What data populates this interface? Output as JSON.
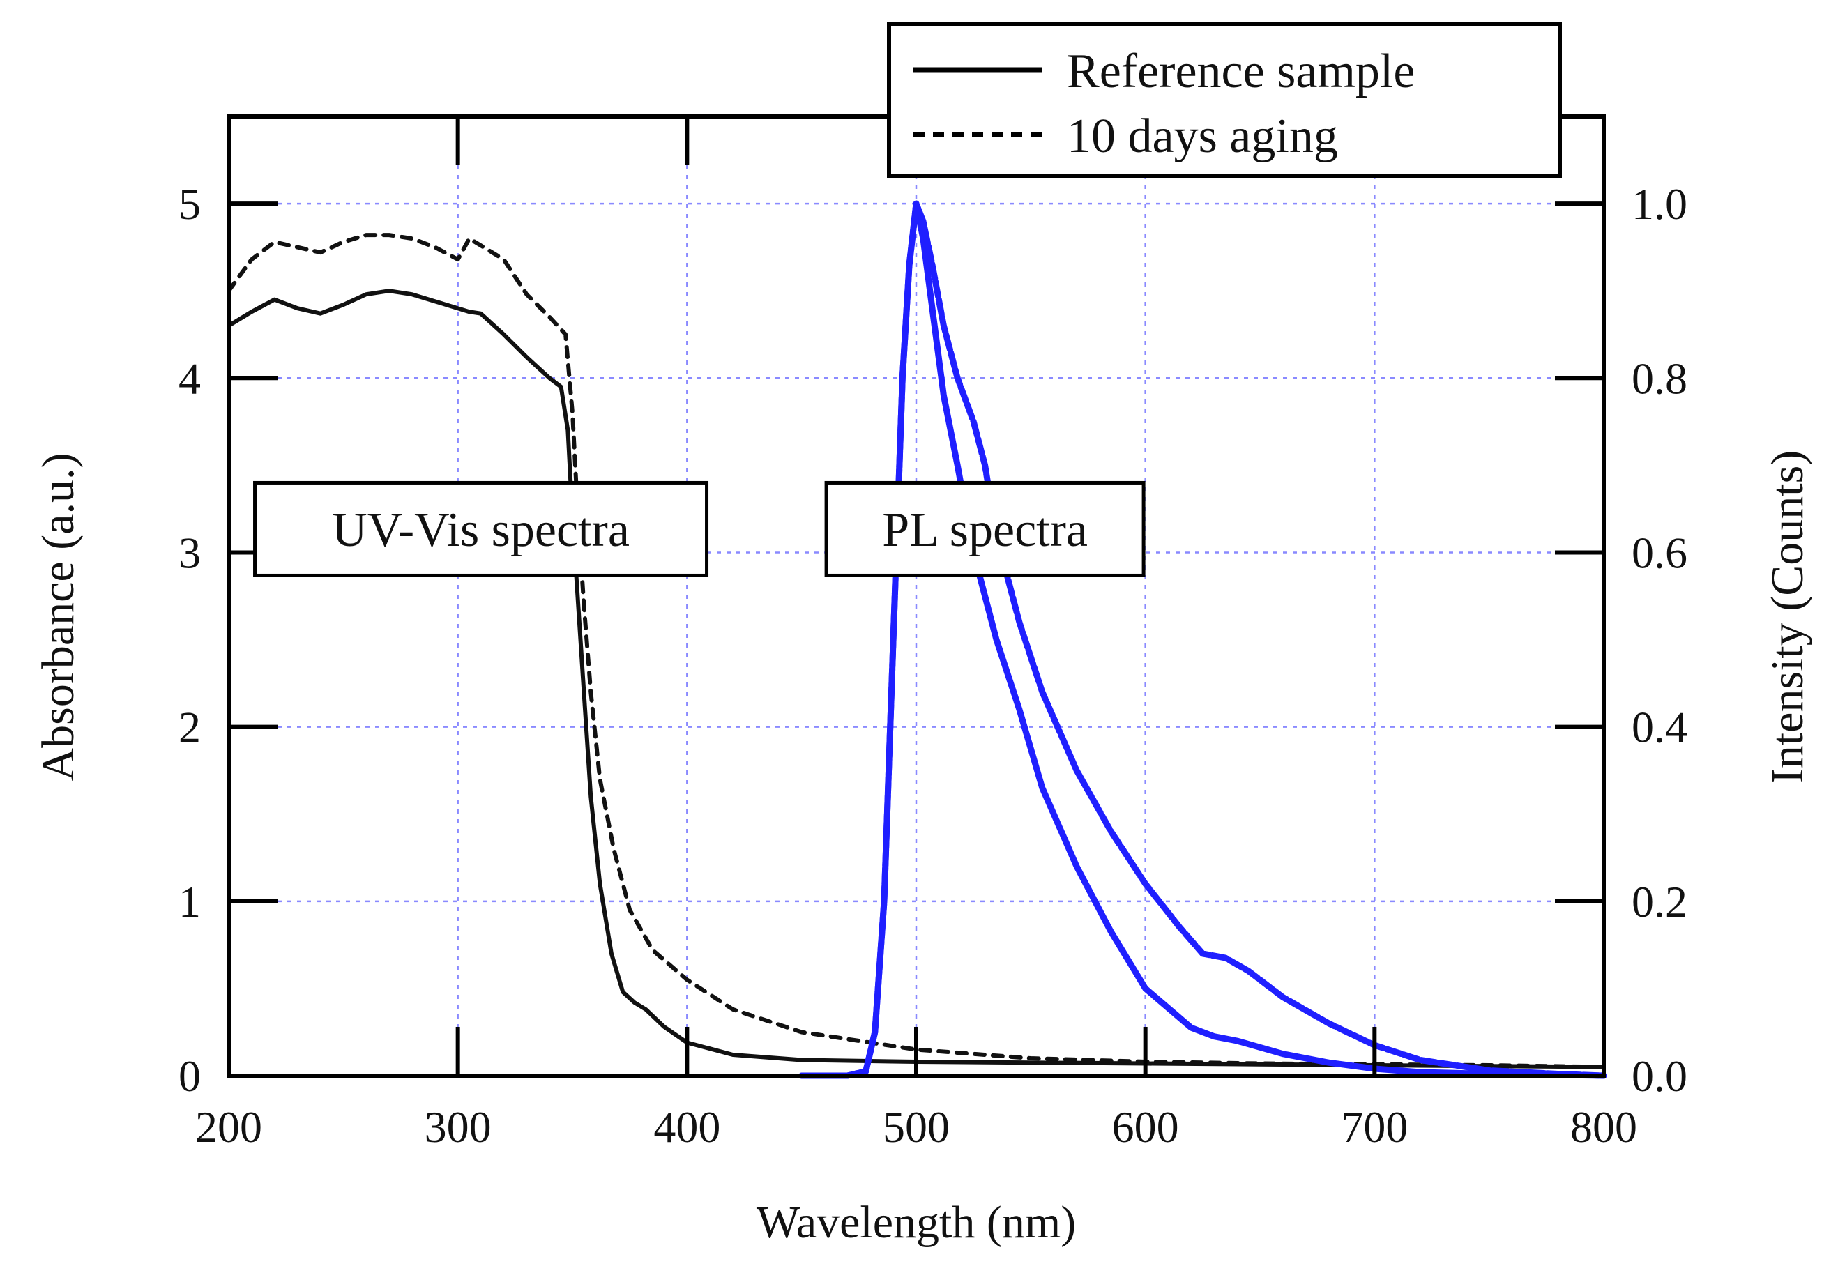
{
  "chart_data": {
    "type": "line",
    "title": "",
    "xlabel": "Wavelength (nm)",
    "ylabel_left": "Absorbance (a.u.)",
    "ylabel_right": "Intensity (Counts)",
    "xlim": [
      200,
      800
    ],
    "ylim_left": [
      0,
      5.5
    ],
    "ylim_right": [
      0,
      1.1
    ],
    "x_ticks": [
      "200",
      "300",
      "400",
      "500",
      "600",
      "700",
      "800"
    ],
    "y_left_ticks": [
      "0",
      "1",
      "2",
      "3",
      "4",
      "5"
    ],
    "y_right_ticks": [
      "0.0",
      "0.2",
      "0.4",
      "0.6",
      "0.8",
      "1.0"
    ],
    "grid": true,
    "legend_position": "top-right",
    "legend": [
      {
        "label": "Reference sample",
        "style": "solid"
      },
      {
        "label": "10 days aging",
        "style": "dashed"
      }
    ],
    "annotations": [
      {
        "text": "UV-Vis spectra",
        "x": 310,
        "y": 3.0
      },
      {
        "text": "PL spectra",
        "x": 530,
        "y": 3.0
      }
    ],
    "colors": {
      "uvvis": "#111111",
      "pl": "#1f1fff",
      "grid": "#8a8aff"
    },
    "series": [
      {
        "group": "UV-Vis spectra",
        "axis": "left",
        "style": "solid",
        "points": [
          [
            200,
            4.3
          ],
          [
            210,
            4.38
          ],
          [
            220,
            4.45
          ],
          [
            230,
            4.4
          ],
          [
            240,
            4.37
          ],
          [
            250,
            4.42
          ],
          [
            260,
            4.48
          ],
          [
            270,
            4.5
          ],
          [
            280,
            4.48
          ],
          [
            290,
            4.44
          ],
          [
            300,
            4.4
          ],
          [
            305,
            4.38
          ],
          [
            310,
            4.37
          ],
          [
            320,
            4.25
          ],
          [
            330,
            4.12
          ],
          [
            340,
            4.0
          ],
          [
            345,
            3.95
          ],
          [
            348,
            3.7
          ],
          [
            350,
            3.2
          ],
          [
            352,
            2.8
          ],
          [
            355,
            2.2
          ],
          [
            358,
            1.6
          ],
          [
            362,
            1.1
          ],
          [
            367,
            0.7
          ],
          [
            372,
            0.48
          ],
          [
            377,
            0.42
          ],
          [
            382,
            0.38
          ],
          [
            390,
            0.28
          ],
          [
            400,
            0.19
          ],
          [
            420,
            0.12
          ],
          [
            450,
            0.09
          ],
          [
            500,
            0.08
          ],
          [
            550,
            0.075
          ],
          [
            600,
            0.07
          ],
          [
            650,
            0.065
          ],
          [
            700,
            0.06
          ],
          [
            750,
            0.055
          ],
          [
            800,
            0.05
          ]
        ]
      },
      {
        "group": "UV-Vis spectra",
        "axis": "left",
        "style": "dashed",
        "points": [
          [
            200,
            4.5
          ],
          [
            210,
            4.68
          ],
          [
            220,
            4.78
          ],
          [
            230,
            4.75
          ],
          [
            240,
            4.72
          ],
          [
            250,
            4.78
          ],
          [
            260,
            4.82
          ],
          [
            270,
            4.82
          ],
          [
            280,
            4.8
          ],
          [
            290,
            4.75
          ],
          [
            300,
            4.68
          ],
          [
            305,
            4.8
          ],
          [
            310,
            4.76
          ],
          [
            320,
            4.68
          ],
          [
            330,
            4.48
          ],
          [
            340,
            4.35
          ],
          [
            347,
            4.25
          ],
          [
            350,
            3.8
          ],
          [
            352,
            3.3
          ],
          [
            355,
            2.7
          ],
          [
            358,
            2.2
          ],
          [
            362,
            1.7
          ],
          [
            368,
            1.3
          ],
          [
            375,
            0.95
          ],
          [
            385,
            0.72
          ],
          [
            400,
            0.55
          ],
          [
            420,
            0.38
          ],
          [
            450,
            0.25
          ],
          [
            500,
            0.15
          ],
          [
            550,
            0.1
          ],
          [
            600,
            0.08
          ],
          [
            650,
            0.07
          ],
          [
            700,
            0.065
          ],
          [
            750,
            0.06
          ],
          [
            800,
            0.05
          ]
        ]
      },
      {
        "group": "PL spectra",
        "axis": "right",
        "style": "solid",
        "points": [
          [
            450,
            0.0
          ],
          [
            470,
            0.0
          ],
          [
            478,
            0.005
          ],
          [
            482,
            0.05
          ],
          [
            486,
            0.2
          ],
          [
            490,
            0.5
          ],
          [
            494,
            0.8
          ],
          [
            497,
            0.93
          ],
          [
            500,
            1.0
          ],
          [
            503,
            0.96
          ],
          [
            507,
            0.88
          ],
          [
            512,
            0.78
          ],
          [
            518,
            0.7
          ],
          [
            525,
            0.6
          ],
          [
            535,
            0.5
          ],
          [
            545,
            0.42
          ],
          [
            555,
            0.33
          ],
          [
            570,
            0.24
          ],
          [
            585,
            0.165
          ],
          [
            600,
            0.1
          ],
          [
            620,
            0.055
          ],
          [
            630,
            0.045
          ],
          [
            640,
            0.04
          ],
          [
            660,
            0.025
          ],
          [
            680,
            0.015
          ],
          [
            700,
            0.008
          ],
          [
            720,
            0.004
          ],
          [
            750,
            0.002
          ],
          [
            800,
            0.0
          ]
        ]
      },
      {
        "group": "PL spectra",
        "axis": "right",
        "style": "dashed",
        "points": [
          [
            450,
            0.0
          ],
          [
            470,
            0.0
          ],
          [
            478,
            0.005
          ],
          [
            482,
            0.05
          ],
          [
            486,
            0.2
          ],
          [
            490,
            0.5
          ],
          [
            494,
            0.8
          ],
          [
            497,
            0.93
          ],
          [
            500,
            1.0
          ],
          [
            503,
            0.98
          ],
          [
            507,
            0.93
          ],
          [
            512,
            0.86
          ],
          [
            518,
            0.8
          ],
          [
            525,
            0.75
          ],
          [
            530,
            0.7
          ],
          [
            535,
            0.62
          ],
          [
            545,
            0.52
          ],
          [
            555,
            0.44
          ],
          [
            570,
            0.35
          ],
          [
            585,
            0.28
          ],
          [
            600,
            0.22
          ],
          [
            615,
            0.17
          ],
          [
            625,
            0.14
          ],
          [
            635,
            0.135
          ],
          [
            645,
            0.12
          ],
          [
            660,
            0.09
          ],
          [
            680,
            0.06
          ],
          [
            700,
            0.035
          ],
          [
            720,
            0.018
          ],
          [
            750,
            0.006
          ],
          [
            780,
            0.002
          ],
          [
            800,
            0.0
          ]
        ]
      }
    ]
  }
}
